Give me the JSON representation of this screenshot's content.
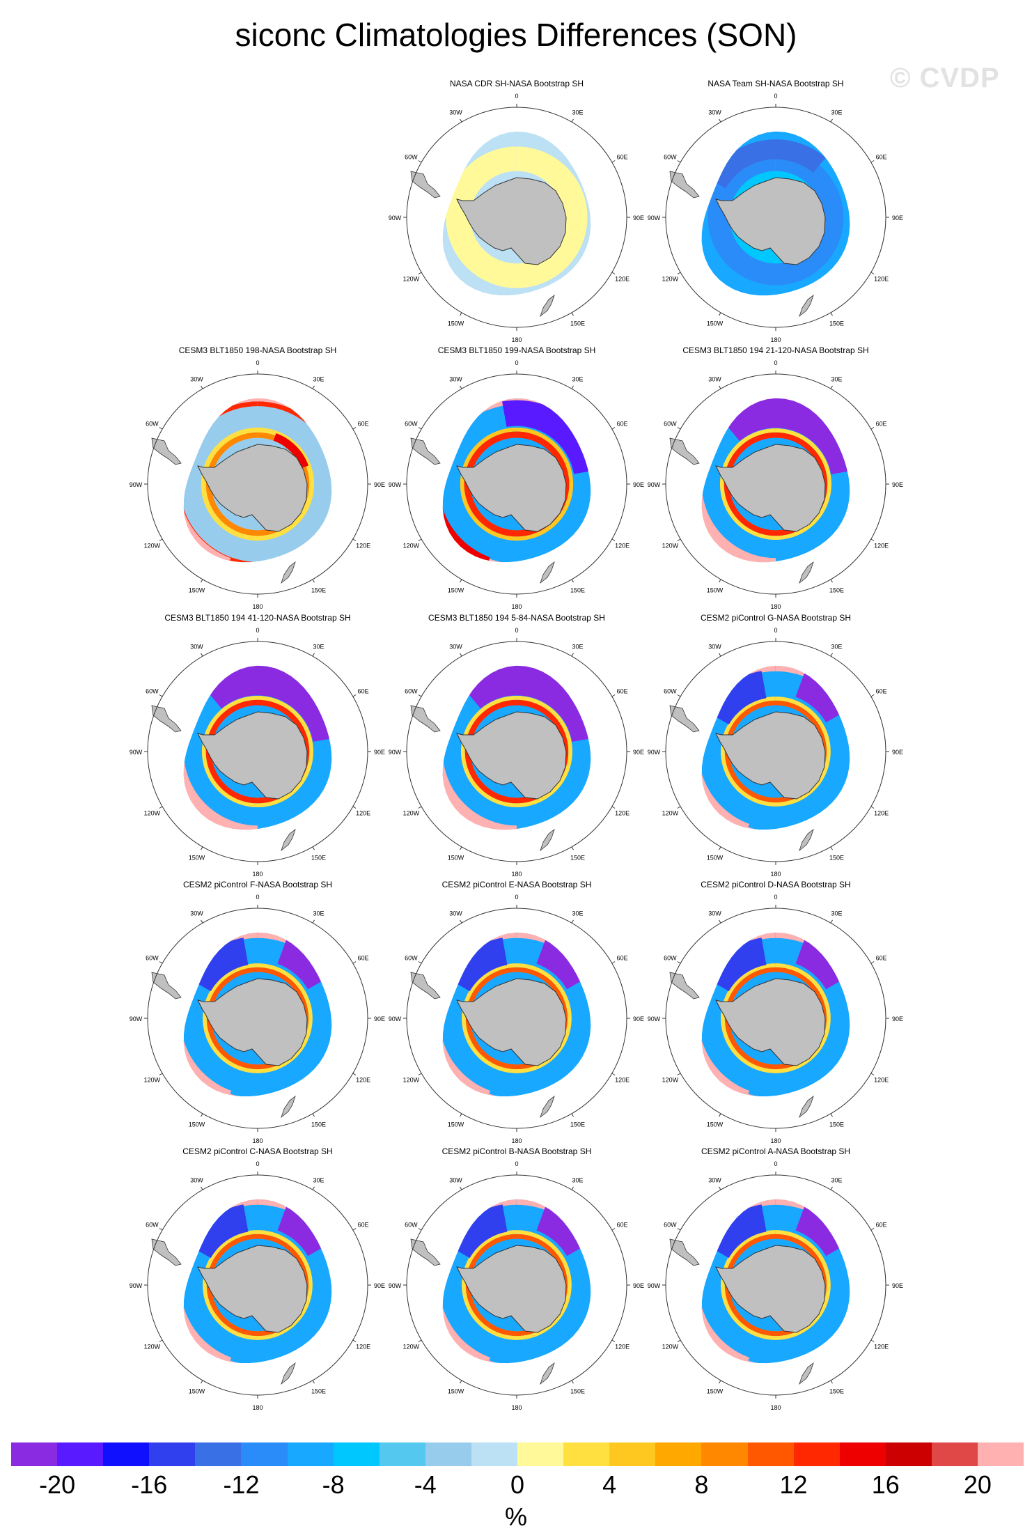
{
  "title": "siconc Climatologies Differences (SON)",
  "watermark": "© CVDP",
  "lon_labels": {
    "l0": "0",
    "l30e": "30E",
    "l60e": "60E",
    "l90e": "90E",
    "l120e": "120E",
    "l150e": "150E",
    "l180": "180",
    "l150w": "150W",
    "l120w": "120W",
    "l90w": "90W",
    "l60w": "60W",
    "l30w": "30W"
  },
  "colors": {
    "land": "#c0c0c0",
    "coast": "#333333",
    "circle": "#333333",
    "palette": [
      "#8a2be2",
      "#5a1aff",
      "#1010ff",
      "#3040ee",
      "#3a70e6",
      "#2a8cf8",
      "#18a8ff",
      "#00c8ff",
      "#55c8f0",
      "#98ccec",
      "#bce0f4",
      "#fff99a",
      "#ffe040",
      "#ffc820",
      "#ffa800",
      "#ff8800",
      "#ff5800",
      "#ff2800",
      "#ee0000",
      "#cc0000",
      "#e04848",
      "#ffb0b0"
    ]
  },
  "panels": [
    {
      "title": "NASA CDR SH-NASA Bootstrap SH",
      "pattern": "cdr"
    },
    {
      "title": "NASA Team SH-NASA Bootstrap SH",
      "pattern": "team"
    },
    {
      "title": "CESM3 BLT1850 198-NASA Bootstrap SH",
      "pattern": "c3a"
    },
    {
      "title": "CESM3 BLT1850 199-NASA Bootstrap SH",
      "pattern": "c3b"
    },
    {
      "title": "CESM3 BLT1850 194 21-120-NASA Bootstrap SH",
      "pattern": "c3c"
    },
    {
      "title": "CESM3 BLT1850 194 41-120-NASA Bootstrap SH",
      "pattern": "c3c"
    },
    {
      "title": "CESM3 BLT1850 194 5-84-NASA Bootstrap SH",
      "pattern": "c3c"
    },
    {
      "title": "CESM2 piControl G-NASA Bootstrap SH",
      "pattern": "c2"
    },
    {
      "title": "CESM2 piControl F-NASA Bootstrap SH",
      "pattern": "c2"
    },
    {
      "title": "CESM2 piControl E-NASA Bootstrap SH",
      "pattern": "c2"
    },
    {
      "title": "CESM2 piControl D-NASA Bootstrap SH",
      "pattern": "c2"
    },
    {
      "title": "CESM2 piControl C-NASA Bootstrap SH",
      "pattern": "c2"
    },
    {
      "title": "CESM2 piControl B-NASA Bootstrap SH",
      "pattern": "c2"
    },
    {
      "title": "CESM2 piControl A-NASA Bootstrap SH",
      "pattern": "c2"
    }
  ],
  "colorbar": {
    "labels": [
      "-20",
      "-16",
      "-12",
      "-8",
      "-4",
      "0",
      "4",
      "8",
      "12",
      "16",
      "20"
    ],
    "unit": "%"
  }
}
